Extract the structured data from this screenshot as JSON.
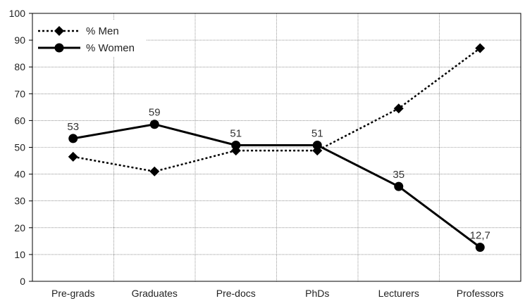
{
  "chart_data": {
    "type": "line",
    "title": "",
    "xlabel": "",
    "ylabel": "",
    "categories": [
      "Pre-grads",
      "Graduates",
      "Pre-docs",
      "PhDs",
      "Lecturers",
      "Professors"
    ],
    "ylim": [
      0,
      100
    ],
    "yticks": [
      "0",
      "10",
      "20",
      "30",
      "40",
      "50",
      "60",
      "70",
      "80",
      "90",
      "100"
    ],
    "grid": true,
    "legend_position": "top-left",
    "series": [
      {
        "name": "% Men",
        "values": [
          46.5,
          41,
          48.8,
          48.8,
          64.5,
          87
        ],
        "style": "dotted",
        "marker": "diamond",
        "color": "#000000",
        "labels": []
      },
      {
        "name": "% Women",
        "values": [
          53.3,
          58.6,
          50.8,
          50.8,
          35.4,
          12.7
        ],
        "style": "solid",
        "marker": "circle",
        "color": "#000000",
        "labels": [
          "53",
          "59",
          "51",
          "51",
          "35",
          "12,7"
        ]
      }
    ]
  }
}
